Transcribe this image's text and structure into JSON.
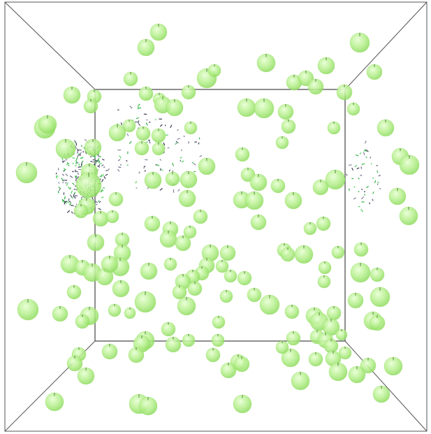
{
  "scene": {
    "background": "#ffffff",
    "frame_color": "#555555",
    "sphere_color": "#b6f08a",
    "sphere_highlight": "#e9ffd6",
    "sphere_shade": "#8fd85e",
    "particle_colors": [
      "#2b2b44",
      "#5a5a78",
      "#22aa33",
      "#7a7a90",
      "#44cc55"
    ]
  }
}
